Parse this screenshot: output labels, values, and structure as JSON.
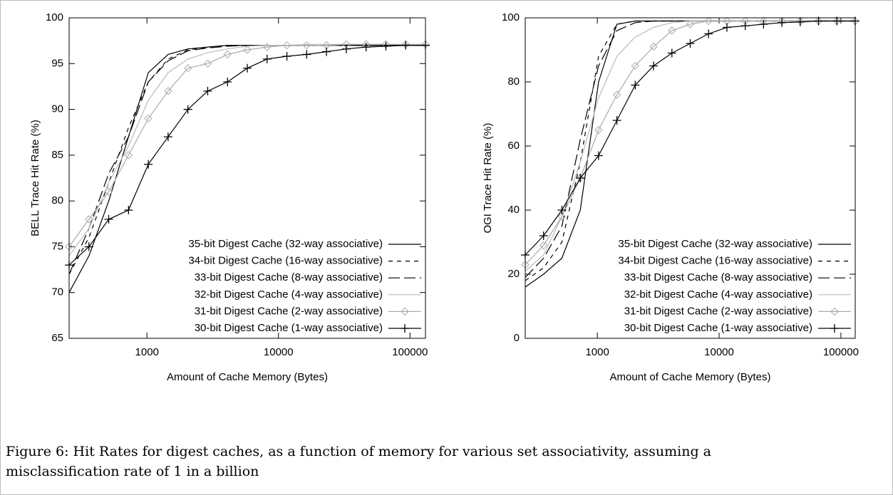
{
  "chart_data": [
    {
      "type": "line",
      "x_label": "Amount of Cache Memory (Bytes)",
      "y_label": "BELL Trace Hit Rate (%)",
      "log_x": true,
      "legend": "lower right",
      "xlim": [
        256,
        131072
      ],
      "xticks": [
        1000,
        10000,
        100000
      ],
      "ylim": [
        65,
        100
      ],
      "yticks": [
        65,
        70,
        75,
        80,
        85,
        90,
        95,
        100
      ],
      "x": [
        256,
        362,
        512,
        724,
        1024,
        1448,
        2048,
        2896,
        4096,
        5793,
        8192,
        11585,
        16384,
        23170,
        32768,
        46341,
        65536,
        92682,
        131072
      ],
      "series": [
        {
          "name": "35-bit Digest Cache (32-way associative)",
          "color": "#000000",
          "dash": "solid",
          "marker": "none",
          "values": [
            70,
            74,
            80,
            87,
            94,
            96,
            96.6,
            96.8,
            97,
            97,
            97,
            97,
            97,
            97,
            97,
            97,
            97,
            97,
            97
          ]
        },
        {
          "name": "34-bit Digest Cache (16-way associative)",
          "color": "#000000",
          "dash": "short",
          "marker": "none",
          "values": [
            72,
            76,
            82,
            88,
            93,
            95.5,
            96.5,
            96.8,
            97,
            97,
            97,
            97,
            97,
            97,
            97,
            97,
            97,
            97,
            97
          ]
        },
        {
          "name": "33-bit Digest Cache (8-way associative)",
          "color": "#000000",
          "dash": "long",
          "marker": "none",
          "values": [
            72,
            77,
            83,
            87,
            93,
            95.3,
            96.4,
            96.7,
            96.9,
            97,
            97,
            97,
            97,
            97,
            97,
            97,
            97,
            97,
            97
          ]
        },
        {
          "name": "32-bit Digest Cache (4-way associative)",
          "color": "#bbbbbb",
          "dash": "solid",
          "marker": "none",
          "values": [
            74,
            77,
            82,
            86,
            91,
            94,
            95.5,
            96.2,
            96.6,
            96.9,
            97,
            97,
            97.1,
            97.1,
            97.1,
            97.1,
            97.1,
            97.1,
            97.1
          ]
        },
        {
          "name": "31-bit Digest Cache (2-way associative)",
          "color": "#aaaaaa",
          "dash": "solid",
          "marker": "diamond",
          "values": [
            75,
            78,
            81,
            85,
            89,
            92,
            94.5,
            95,
            96,
            96.5,
            96.8,
            97,
            97,
            97,
            97.1,
            97.1,
            97.1,
            97.1,
            97.1
          ]
        },
        {
          "name": "30-bit Digest Cache (1-way associative)",
          "color": "#000000",
          "dash": "solid",
          "marker": "plus",
          "values": [
            73,
            75,
            78,
            79,
            84,
            87,
            90,
            92,
            93,
            94.5,
            95.5,
            95.8,
            96,
            96.3,
            96.6,
            96.8,
            96.9,
            97,
            97
          ]
        }
      ]
    },
    {
      "type": "line",
      "x_label": "Amount of Cache Memory (Bytes)",
      "y_label": "OGI Trace Hit Rate (%)",
      "log_x": true,
      "legend": "lower right",
      "xlim": [
        256,
        131072
      ],
      "xticks": [
        1000,
        10000,
        100000
      ],
      "ylim": [
        0,
        100
      ],
      "yticks": [
        0,
        20,
        40,
        60,
        80,
        100
      ],
      "x": [
        256,
        362,
        512,
        724,
        1024,
        1448,
        2048,
        2896,
        4096,
        5793,
        8192,
        11585,
        16384,
        23170,
        32768,
        46341,
        65536,
        92682,
        131072
      ],
      "series": [
        {
          "name": "35-bit Digest Cache (32-way associative)",
          "color": "#000000",
          "dash": "solid",
          "marker": "none",
          "values": [
            16,
            20,
            25,
            40,
            80,
            98,
            99,
            99,
            99,
            99,
            99,
            99,
            99,
            99,
            99,
            99,
            99,
            99,
            99
          ]
        },
        {
          "name": "34-bit Digest Cache (16-way associative)",
          "color": "#000000",
          "dash": "short",
          "marker": "none",
          "values": [
            18,
            22,
            30,
            55,
            88,
            98,
            99,
            99,
            99,
            99,
            99,
            99,
            99,
            99,
            99,
            99,
            99,
            99,
            99
          ]
        },
        {
          "name": "33-bit Digest Cache (8-way associative)",
          "color": "#000000",
          "dash": "long",
          "marker": "none",
          "values": [
            19,
            25,
            35,
            62,
            85,
            96,
            98.5,
            99,
            99,
            99,
            99,
            99,
            99,
            99,
            99,
            99,
            99,
            99,
            99
          ]
        },
        {
          "name": "32-bit Digest Cache (4-way associative)",
          "color": "#bbbbbb",
          "dash": "solid",
          "marker": "none",
          "values": [
            21,
            26,
            38,
            55,
            75,
            88,
            94,
            97,
            98.5,
            99,
            99,
            99,
            99,
            99,
            99,
            99,
            99,
            99,
            99
          ]
        },
        {
          "name": "31-bit Digest Cache (2-way associative)",
          "color": "#aaaaaa",
          "dash": "solid",
          "marker": "diamond",
          "values": [
            23,
            29,
            38,
            50,
            65,
            76,
            85,
            91,
            96,
            98,
            99,
            99,
            99,
            99,
            99,
            99,
            99,
            99,
            99
          ]
        },
        {
          "name": "30-bit Digest Cache (1-way associative)",
          "color": "#000000",
          "dash": "solid",
          "marker": "plus",
          "values": [
            26,
            32,
            40,
            50,
            57,
            68,
            79,
            85,
            89,
            92,
            95,
            97,
            97.5,
            98,
            98.5,
            98.7,
            99,
            99,
            99
          ]
        }
      ]
    }
  ],
  "caption": {
    "line1": "Figure 6: Hit Rates for digest caches, as a function of memory for various set associativity, assuming a",
    "line2": "misclassification rate of 1 in a billion"
  }
}
